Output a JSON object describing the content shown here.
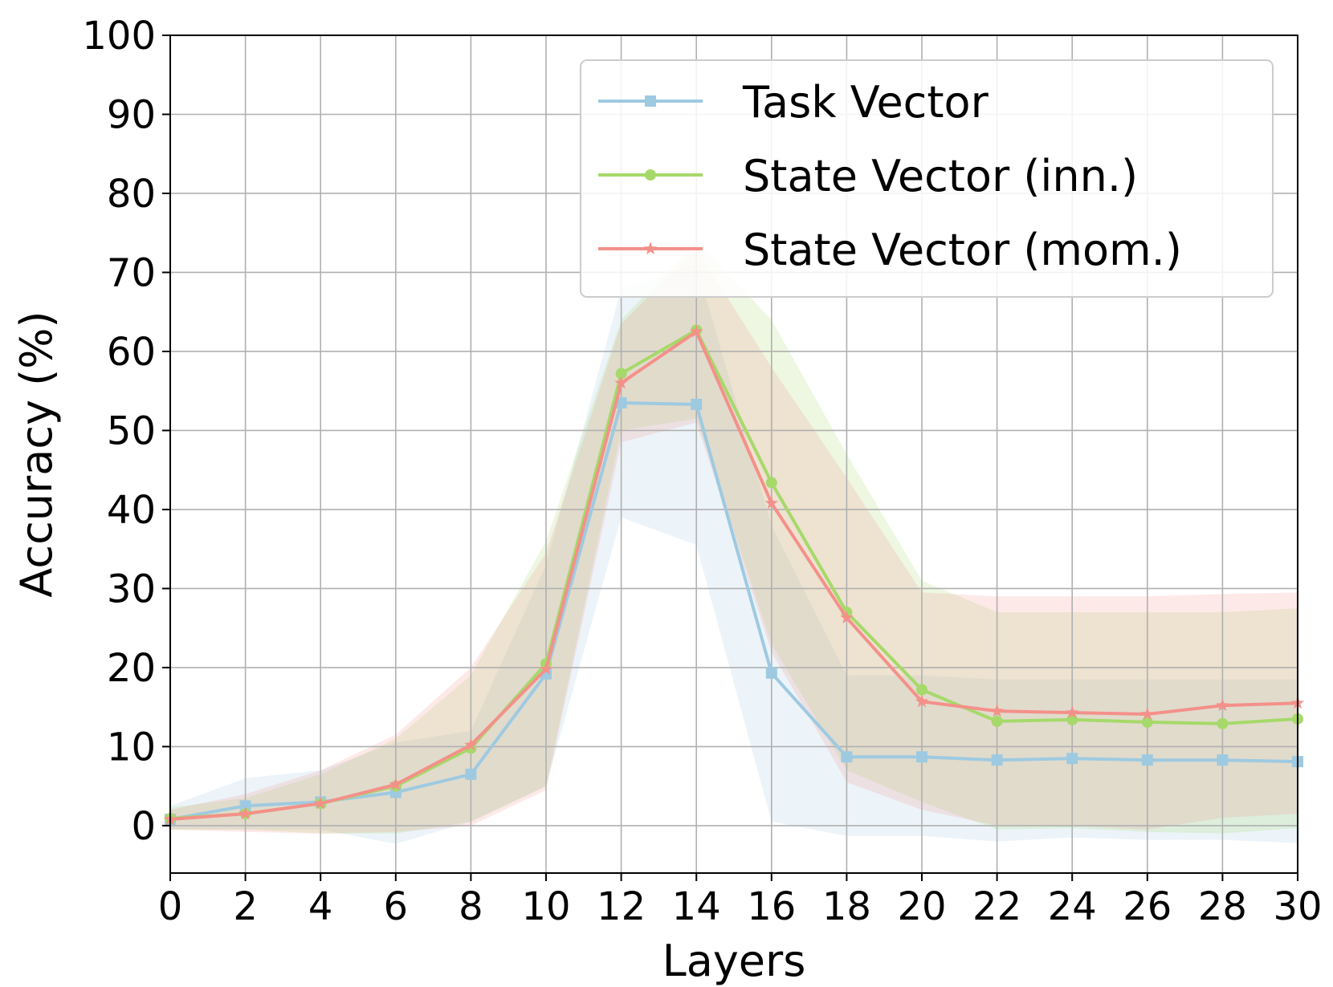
{
  "chart_data": {
    "type": "line",
    "xlabel": "Layers",
    "ylabel": "Accuracy (%)",
    "xlim": [
      0,
      30
    ],
    "ylim": [
      -6,
      100
    ],
    "xticks": [
      0,
      2,
      4,
      6,
      8,
      10,
      12,
      14,
      16,
      18,
      20,
      22,
      24,
      26,
      28,
      30
    ],
    "yticks": [
      0,
      10,
      20,
      30,
      40,
      50,
      60,
      70,
      80,
      90,
      100
    ],
    "grid": true,
    "legend_position": "top-right",
    "x": [
      0,
      2,
      4,
      6,
      8,
      10,
      12,
      14,
      16,
      18,
      20,
      22,
      24,
      26,
      28,
      30
    ],
    "series": [
      {
        "name": "Task Vector",
        "marker": "square",
        "color": "#9ecae1",
        "values": [
          0.8,
          2.5,
          3.0,
          4.2,
          6.5,
          19.2,
          53.5,
          53.3,
          19.3,
          8.7,
          8.7,
          8.3,
          8.5,
          8.3,
          8.3,
          8.1
        ],
        "band_upper": [
          2.5,
          6.0,
          7.0,
          10.5,
          12.0,
          33.0,
          68.0,
          71.0,
          38.0,
          19.0,
          19.0,
          18.5,
          18.5,
          18.5,
          18.5,
          18.5
        ],
        "band_lower": [
          -0.5,
          -0.5,
          -0.5,
          -2.3,
          0.5,
          5.0,
          39.0,
          35.5,
          0.5,
          -1.3,
          -1.3,
          -2.0,
          -1.5,
          -1.8,
          -1.8,
          -2.2
        ]
      },
      {
        "name": "State Vector (inn.)",
        "marker": "circle",
        "color": "#a6d96a",
        "values": [
          0.9,
          1.5,
          2.8,
          5.0,
          9.8,
          20.5,
          57.2,
          62.7,
          43.4,
          27.0,
          17.2,
          13.2,
          13.4,
          13.1,
          12.9,
          13.5
        ],
        "band_upper": [
          2.3,
          3.5,
          6.5,
          11.0,
          19.0,
          36.0,
          64.0,
          74.0,
          64.0,
          47.0,
          31.0,
          27.0,
          27.0,
          27.0,
          27.0,
          27.5
        ],
        "band_lower": [
          -0.5,
          -0.5,
          -1.0,
          -1.0,
          0.5,
          5.0,
          50.0,
          51.5,
          23.0,
          7.0,
          3.0,
          -0.5,
          -0.3,
          -0.8,
          -1.0,
          -0.3
        ]
      },
      {
        "name": "State Vector (mom.)",
        "marker": "star",
        "color": "#f4908a",
        "values": [
          0.8,
          1.5,
          2.8,
          5.2,
          10.2,
          19.8,
          56.0,
          62.5,
          40.8,
          26.3,
          15.7,
          14.5,
          14.3,
          14.1,
          15.2,
          15.5
        ],
        "band_upper": [
          2.0,
          4.0,
          7.0,
          11.5,
          20.0,
          34.5,
          63.5,
          73.0,
          58.0,
          44.0,
          29.5,
          29.0,
          29.0,
          29.0,
          29.3,
          29.5
        ],
        "band_lower": [
          -0.5,
          -0.8,
          -1.0,
          -0.8,
          0.0,
          4.5,
          48.5,
          51.0,
          22.0,
          5.5,
          2.0,
          0.0,
          0.0,
          -0.5,
          1.0,
          1.5
        ]
      }
    ]
  }
}
